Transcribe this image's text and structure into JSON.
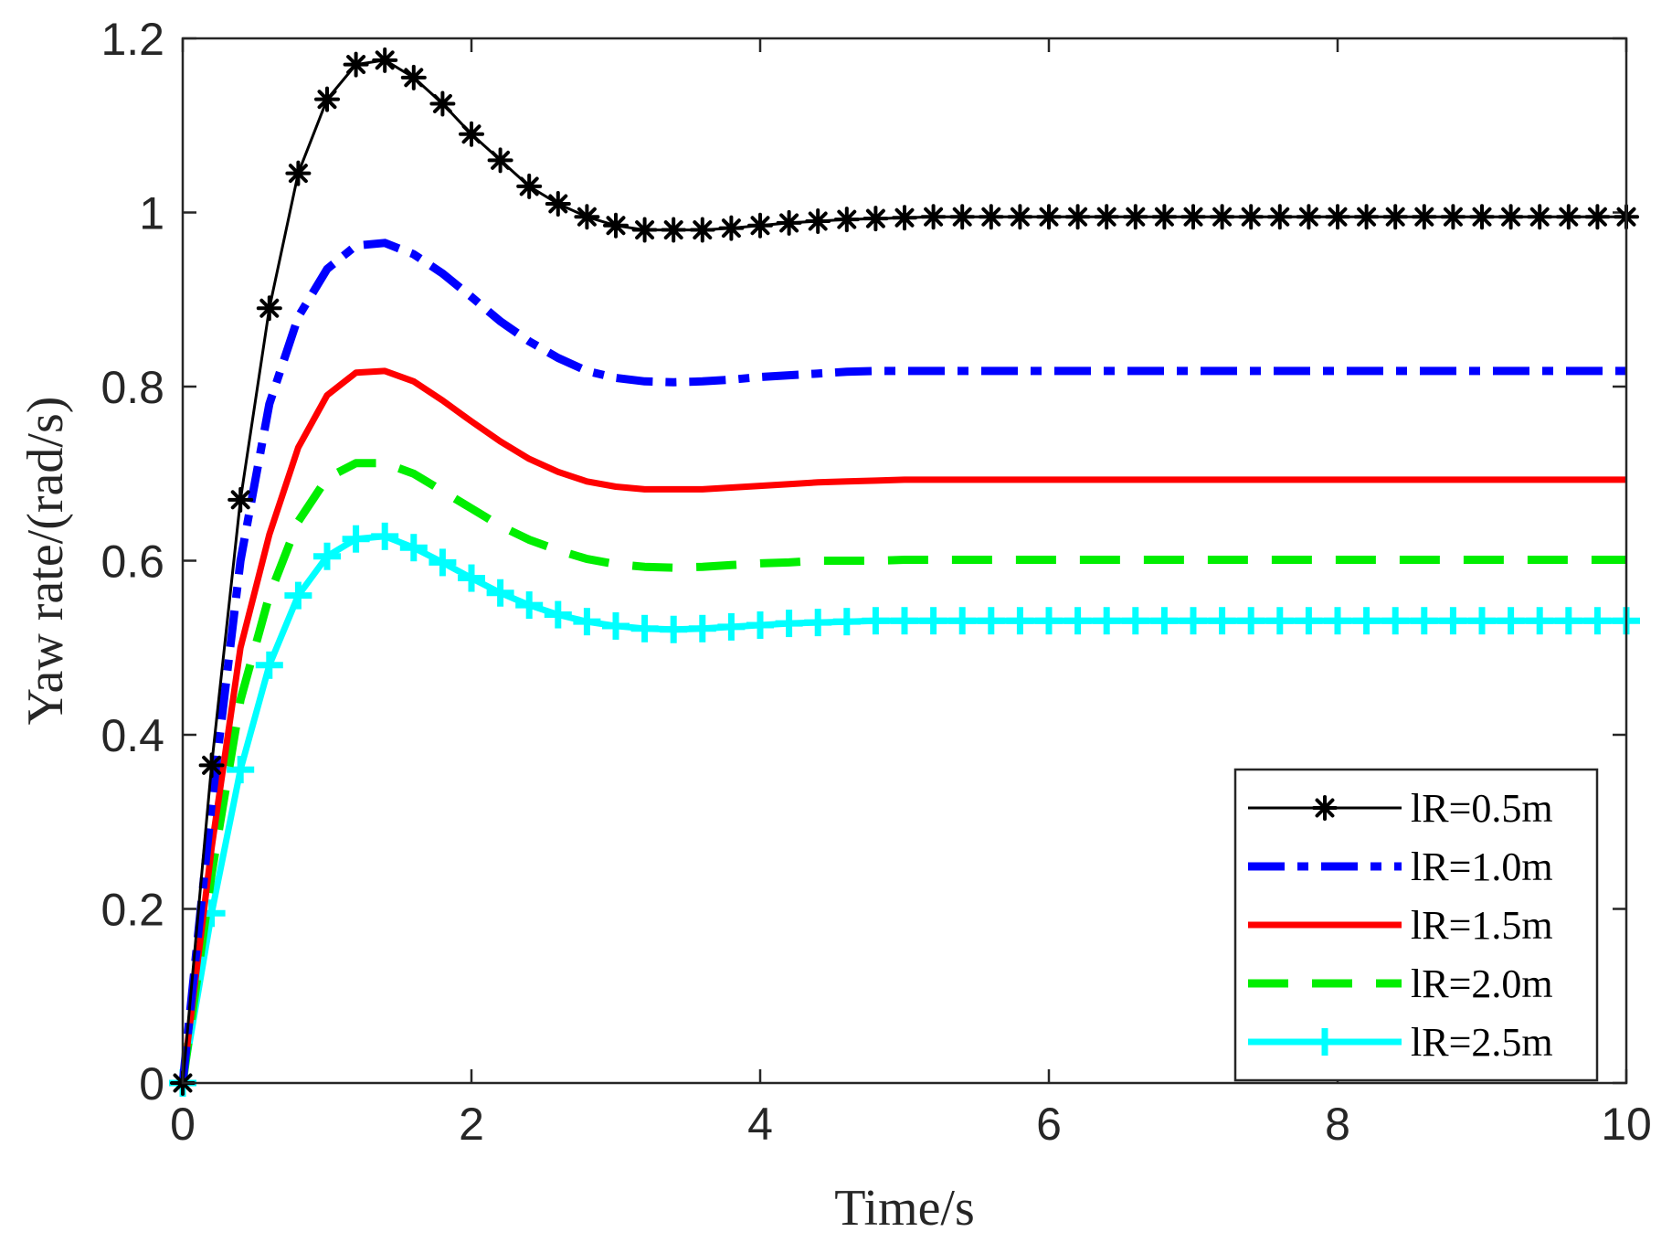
{
  "chart_data": {
    "type": "line",
    "title": "",
    "xlabel": "Time/s",
    "ylabel": "Yaw rate/(rad/s)",
    "xlim": [
      0,
      10
    ],
    "ylim": [
      0,
      1.2
    ],
    "xticks": [
      0,
      2,
      4,
      6,
      8,
      10
    ],
    "yticks": [
      0,
      0.2,
      0.4,
      0.6,
      0.8,
      1,
      1.2
    ],
    "xtick_labels": [
      "0",
      "2",
      "4",
      "6",
      "8",
      "10"
    ],
    "ytick_labels": [
      "0",
      "0.2",
      "0.4",
      "0.6",
      "0.8",
      "1",
      "1.2"
    ],
    "grid": false,
    "legend_position": "bottom-right",
    "x": [
      0,
      0.2,
      0.4,
      0.6,
      0.8,
      1.0,
      1.2,
      1.4,
      1.6,
      1.8,
      2.0,
      2.2,
      2.4,
      2.6,
      2.8,
      3.0,
      3.2,
      3.4,
      3.6,
      3.8,
      4.0,
      4.2,
      4.4,
      4.6,
      4.8,
      5.0,
      5.2,
      5.4,
      5.6,
      5.8,
      6.0,
      6.2,
      6.4,
      6.6,
      6.8,
      7.0,
      7.2,
      7.4,
      7.6,
      7.8,
      8.0,
      8.2,
      8.4,
      8.6,
      8.8,
      9.0,
      9.2,
      9.4,
      9.6,
      9.8,
      10.0
    ],
    "series": [
      {
        "name": "lR=0.5m",
        "color": "#000000",
        "line_style": "solid",
        "marker": "asterisk",
        "values": [
          0,
          0.365,
          0.67,
          0.89,
          1.045,
          1.13,
          1.17,
          1.175,
          1.155,
          1.125,
          1.09,
          1.06,
          1.03,
          1.01,
          0.995,
          0.985,
          0.98,
          0.98,
          0.98,
          0.982,
          0.985,
          0.988,
          0.99,
          0.992,
          0.993,
          0.994,
          0.995,
          0.995,
          0.995,
          0.995,
          0.995,
          0.995,
          0.995,
          0.995,
          0.995,
          0.995,
          0.995,
          0.995,
          0.995,
          0.995,
          0.995,
          0.995,
          0.995,
          0.995,
          0.995,
          0.995,
          0.995,
          0.995,
          0.995,
          0.995,
          0.995
        ]
      },
      {
        "name": "lR=1.0m",
        "color": "#0000ff",
        "line_style": "dashdot",
        "marker": "none",
        "values": [
          0,
          0.32,
          0.6,
          0.78,
          0.88,
          0.935,
          0.962,
          0.965,
          0.952,
          0.93,
          0.903,
          0.875,
          0.852,
          0.833,
          0.818,
          0.81,
          0.806,
          0.805,
          0.806,
          0.808,
          0.811,
          0.813,
          0.815,
          0.817,
          0.818,
          0.818,
          0.818,
          0.818,
          0.818,
          0.818,
          0.818,
          0.818,
          0.818,
          0.818,
          0.818,
          0.818,
          0.818,
          0.818,
          0.818,
          0.818,
          0.818,
          0.818,
          0.818,
          0.818,
          0.818,
          0.818,
          0.818,
          0.818,
          0.818,
          0.818,
          0.818
        ]
      },
      {
        "name": "lR=1.5m",
        "color": "#ff0000",
        "line_style": "solid",
        "marker": "none",
        "values": [
          0,
          0.27,
          0.5,
          0.63,
          0.73,
          0.79,
          0.816,
          0.818,
          0.806,
          0.784,
          0.76,
          0.737,
          0.717,
          0.702,
          0.691,
          0.685,
          0.682,
          0.682,
          0.682,
          0.684,
          0.686,
          0.688,
          0.69,
          0.691,
          0.692,
          0.693,
          0.693,
          0.693,
          0.693,
          0.693,
          0.693,
          0.693,
          0.693,
          0.693,
          0.693,
          0.693,
          0.693,
          0.693,
          0.693,
          0.693,
          0.693,
          0.693,
          0.693,
          0.693,
          0.693,
          0.693,
          0.693,
          0.693,
          0.693,
          0.693,
          0.693
        ]
      },
      {
        "name": "lR=2.0m",
        "color": "#00ee00",
        "line_style": "dashed",
        "marker": "none",
        "values": [
          0,
          0.24,
          0.44,
          0.56,
          0.645,
          0.695,
          0.712,
          0.712,
          0.7,
          0.68,
          0.66,
          0.64,
          0.624,
          0.612,
          0.602,
          0.596,
          0.593,
          0.592,
          0.593,
          0.595,
          0.597,
          0.598,
          0.6,
          0.6,
          0.6,
          0.601,
          0.601,
          0.601,
          0.601,
          0.601,
          0.601,
          0.601,
          0.601,
          0.601,
          0.601,
          0.601,
          0.601,
          0.601,
          0.601,
          0.601,
          0.601,
          0.601,
          0.601,
          0.601,
          0.601,
          0.601,
          0.601,
          0.601,
          0.601,
          0.601,
          0.601
        ]
      },
      {
        "name": "lR=2.5m",
        "color": "#00ffff",
        "line_style": "solid",
        "marker": "plus",
        "values": [
          0,
          0.195,
          0.36,
          0.48,
          0.56,
          0.605,
          0.625,
          0.628,
          0.615,
          0.598,
          0.58,
          0.563,
          0.549,
          0.538,
          0.53,
          0.525,
          0.522,
          0.521,
          0.522,
          0.524,
          0.526,
          0.528,
          0.529,
          0.53,
          0.531,
          0.531,
          0.531,
          0.531,
          0.531,
          0.531,
          0.531,
          0.531,
          0.531,
          0.531,
          0.531,
          0.531,
          0.531,
          0.531,
          0.531,
          0.531,
          0.531,
          0.531,
          0.531,
          0.531,
          0.531,
          0.531,
          0.531,
          0.531,
          0.531,
          0.531,
          0.531
        ]
      }
    ]
  }
}
